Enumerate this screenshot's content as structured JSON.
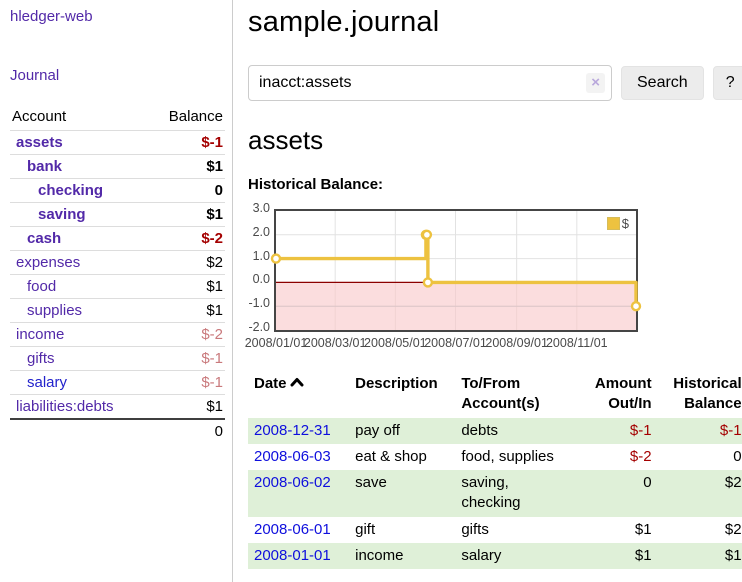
{
  "colors": {
    "accent_purple": "#5229a8",
    "link_blue": "#0f0fdd",
    "salary_blue": "#2222cc",
    "negative_red": "#a40000",
    "faded_red": "#c9797c",
    "row_green": "#dff0d8",
    "chart_line_yellow": "#edc240",
    "chart_negative_pink": "#f9c8ca",
    "chart_zero_line": "#8b0000"
  },
  "sidebar": {
    "app_title": "hledger-web",
    "journal_link": "Journal",
    "accounts": {
      "headers": {
        "account": "Account",
        "balance": "Balance"
      },
      "rows": [
        {
          "name": "assets",
          "balance": "$-1",
          "indent": 1,
          "bold": true,
          "name_style": "purple",
          "balance_style": "neg"
        },
        {
          "name": "bank",
          "balance": "$1",
          "indent": 2,
          "bold": true,
          "name_style": "purple",
          "balance_style": ""
        },
        {
          "name": "checking",
          "balance": "0",
          "indent": 3,
          "bold": true,
          "name_style": "purple",
          "balance_style": ""
        },
        {
          "name": "saving",
          "balance": "$1",
          "indent": 3,
          "bold": true,
          "name_style": "purple",
          "balance_style": ""
        },
        {
          "name": "cash",
          "balance": "$-2",
          "indent": 2,
          "bold": true,
          "name_style": "purple",
          "balance_style": "neg"
        },
        {
          "name": "expenses",
          "balance": "$2",
          "indent": 1,
          "bold": false,
          "name_style": "purple",
          "balance_style": ""
        },
        {
          "name": "food",
          "balance": "$1",
          "indent": 2,
          "bold": false,
          "name_style": "purple",
          "balance_style": ""
        },
        {
          "name": "supplies",
          "balance": "$1",
          "indent": 2,
          "bold": false,
          "name_style": "purple",
          "balance_style": ""
        },
        {
          "name": "income",
          "balance": "$-2",
          "indent": 1,
          "bold": false,
          "name_style": "purple",
          "balance_style": "faded"
        },
        {
          "name": "gifts",
          "balance": "$-1",
          "indent": 2,
          "bold": false,
          "name_style": "purple",
          "balance_style": "faded"
        },
        {
          "name": "salary",
          "balance": "$-1",
          "indent": 2,
          "bold": false,
          "name_style": "blue",
          "balance_style": "faded"
        },
        {
          "name": "liabilities:debts",
          "balance": "$1",
          "indent": 1,
          "bold": false,
          "name_style": "purple",
          "balance_style": ""
        }
      ],
      "total": "0"
    }
  },
  "main": {
    "title": "sample.journal",
    "search": {
      "value": "inacct:assets",
      "clear_icon": "×",
      "button_label": "Search",
      "help_label": "?"
    },
    "account_heading": "assets",
    "chart_label": "Historical Balance:"
  },
  "chart_data": {
    "type": "line",
    "step": true,
    "title": "Historical Balance",
    "x_start": "2008-01-01",
    "x_range_days": 365,
    "ylim": [
      -2,
      3
    ],
    "y_ticks": [
      "3.0",
      "2.0",
      "1.0",
      "0.0",
      "-1.0",
      "-2.0"
    ],
    "x_ticks": [
      "2008/01/01",
      "2008/03/01",
      "2008/05/01",
      "2008/07/01",
      "2008/09/01",
      "2008/11/01"
    ],
    "grid": true,
    "legend_position": "top-right",
    "negative_region": true,
    "series": [
      {
        "name": "$",
        "color": "#edc240",
        "points": [
          [
            "2008-01-01",
            1
          ],
          [
            "2008-06-01",
            2
          ],
          [
            "2008-06-02",
            2
          ],
          [
            "2008-06-03",
            0
          ],
          [
            "2008-12-31",
            -1
          ]
        ]
      }
    ]
  },
  "register": {
    "headers": [
      {
        "l1": "Date",
        "l2": "",
        "sorted": true
      },
      {
        "l1": "Description",
        "l2": ""
      },
      {
        "l1": "To/From",
        "l2": "Account(s)"
      },
      {
        "l1": "Amount",
        "l2": "Out/In"
      },
      {
        "l1": "Historical",
        "l2": "Balance"
      }
    ],
    "rows": [
      {
        "date": "2008-12-31",
        "description": "pay off",
        "accounts": "debts",
        "amount": "$-1",
        "balance": "$-1",
        "shaded": true
      },
      {
        "date": "2008-06-03",
        "description": "eat & shop",
        "accounts": "food, supplies",
        "amount": "$-2",
        "balance": "0",
        "shaded": false
      },
      {
        "date": "2008-06-02",
        "description": "save",
        "accounts": "saving, checking",
        "amount": "0",
        "balance": "$2",
        "shaded": true
      },
      {
        "date": "2008-06-01",
        "description": "gift",
        "accounts": "gifts",
        "amount": "$1",
        "balance": "$2",
        "shaded": false
      },
      {
        "date": "2008-01-01",
        "description": "income",
        "accounts": "salary",
        "amount": "$1",
        "balance": "$1",
        "shaded": true
      }
    ]
  }
}
